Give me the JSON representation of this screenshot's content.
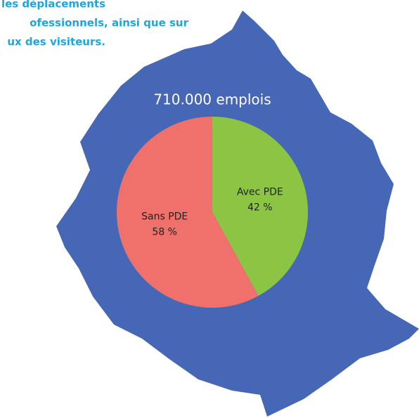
{
  "chart_data": {
    "type": "pie",
    "title": "710.000 emplois",
    "annotations": [
      "les déplacements",
      "ofessionnels, ainsi que sur",
      "ux des visiteurs."
    ],
    "categories": [
      "Avec PDE",
      "Sans PDE"
    ],
    "values": [
      42,
      58
    ],
    "value_labels": [
      "42 %",
      "58 %"
    ],
    "colors": [
      "#8cc443",
      "#f0706b"
    ]
  }
}
